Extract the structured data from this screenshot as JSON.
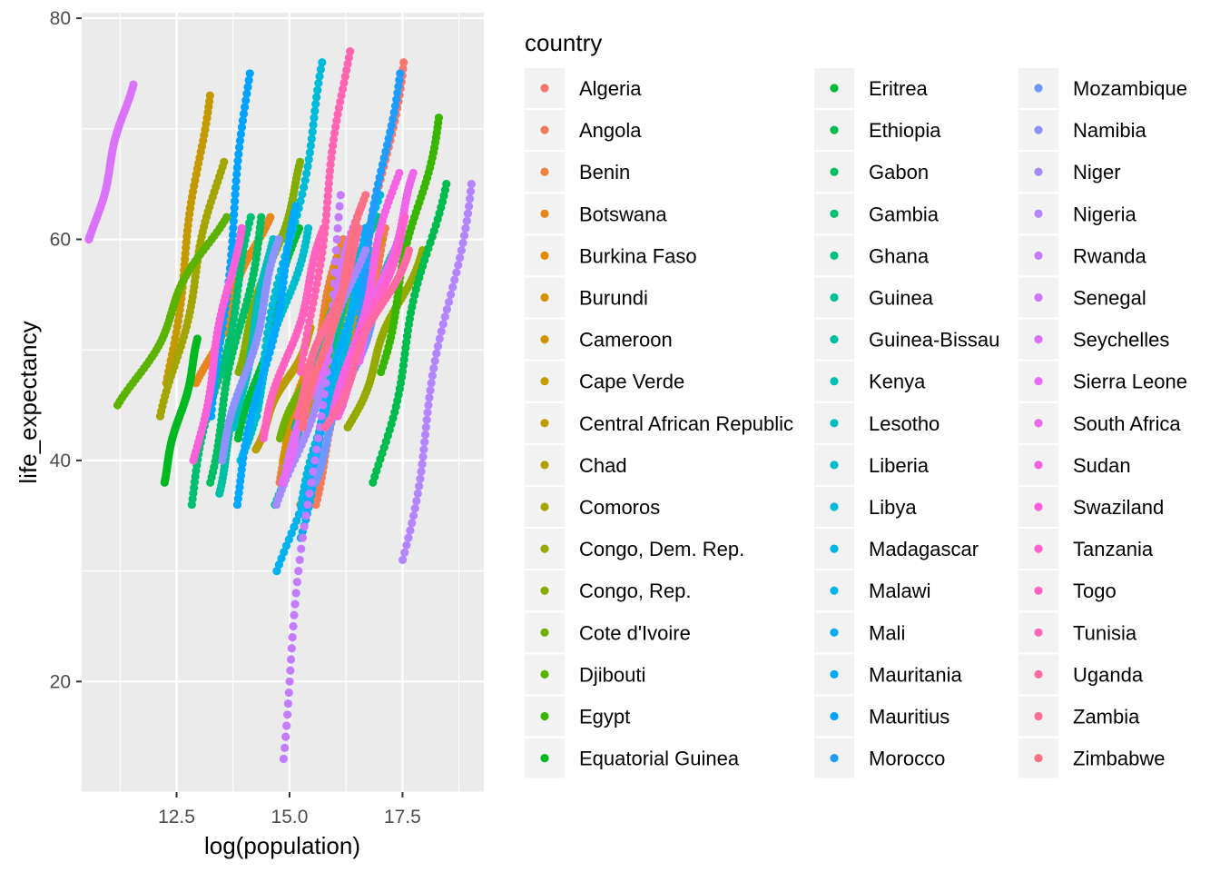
{
  "chart_data": {
    "type": "scatter",
    "title": "",
    "xlabel": "log(population)",
    "ylabel": "life_expectancy",
    "xlim": [
      10.4,
      19.3
    ],
    "ylim": [
      10,
      80.5
    ],
    "x_ticks": [
      "12.5",
      "15.0",
      "17.5"
    ],
    "x_tick_values": [
      12.5,
      15.0,
      17.5
    ],
    "y_ticks": [
      "20",
      "40",
      "60",
      "80"
    ],
    "y_tick_values": [
      20,
      40,
      60,
      80
    ],
    "grid": true,
    "panel_background": "#ebebeb",
    "legend": {
      "title": "country",
      "placement": "right",
      "columns": 3
    },
    "series": [
      {
        "name": "Algeria",
        "color": "#F8766D",
        "x_range": [
          16.2,
          17.5
        ],
        "y_range": [
          46,
          76
        ]
      },
      {
        "name": "Angola",
        "color": "#F37B59",
        "x_range": [
          15.5,
          17.2
        ],
        "y_range": [
          36,
          61
        ]
      },
      {
        "name": "Benin",
        "color": "#ED8141",
        "x_range": [
          14.8,
          16.2
        ],
        "y_range": [
          38,
          60
        ]
      },
      {
        "name": "Botswana",
        "color": "#E7861B",
        "x_range": [
          13.0,
          14.5
        ],
        "y_range": [
          47,
          62
        ]
      },
      {
        "name": "Burkina Faso",
        "color": "#E08B00",
        "x_range": [
          15.2,
          16.8
        ],
        "y_range": [
          36,
          58
        ]
      },
      {
        "name": "Burundi",
        "color": "#D89000",
        "x_range": [
          14.8,
          16.2
        ],
        "y_range": [
          40,
          59
        ]
      },
      {
        "name": "Cameroon",
        "color": "#CF9400",
        "x_range": [
          15.5,
          17.0
        ],
        "y_range": [
          44,
          60
        ]
      },
      {
        "name": "Cape Verde",
        "color": "#C59900",
        "x_range": [
          12.3,
          13.2
        ],
        "y_range": [
          47,
          73
        ]
      },
      {
        "name": "Central African Republic",
        "color": "#BB9D00",
        "x_range": [
          14.2,
          15.5
        ],
        "y_range": [
          41,
          52
        ]
      },
      {
        "name": "Chad",
        "color": "#AFA100",
        "x_range": [
          14.8,
          16.5
        ],
        "y_range": [
          38,
          56
        ]
      },
      {
        "name": "Comoros",
        "color": "#A3A500",
        "x_range": [
          12.2,
          13.5
        ],
        "y_range": [
          44,
          67
        ]
      },
      {
        "name": "Congo, Dem. Rep.",
        "color": "#95A900",
        "x_range": [
          16.3,
          17.9
        ],
        "y_range": [
          43,
          59
        ]
      },
      {
        "name": "Congo, Rep.",
        "color": "#85AD00",
        "x_range": [
          13.8,
          15.3
        ],
        "y_range": [
          48,
          67
        ]
      },
      {
        "name": "Cote d'Ivoire",
        "color": "#72B000",
        "x_range": [
          14.8,
          16.8
        ],
        "y_range": [
          42,
          59
        ]
      },
      {
        "name": "Djibouti",
        "color": "#5BB300",
        "x_range": [
          11.3,
          13.5
        ],
        "y_range": [
          45,
          62
        ]
      },
      {
        "name": "Egypt",
        "color": "#39B600",
        "x_range": [
          17.0,
          18.3
        ],
        "y_range": [
          48,
          71
        ]
      },
      {
        "name": "Equatorial Guinea",
        "color": "#00B81F",
        "x_range": [
          12.2,
          13.0
        ],
        "y_range": [
          38,
          51
        ]
      },
      {
        "name": "Eritrea",
        "color": "#00BA38",
        "x_range": [
          13.9,
          15.2
        ],
        "y_range": [
          42,
          61
        ]
      },
      {
        "name": "Ethiopia",
        "color": "#00BC4E",
        "x_range": [
          16.9,
          18.4
        ],
        "y_range": [
          38,
          65
        ]
      },
      {
        "name": "Gabon",
        "color": "#00BE61",
        "x_range": [
          13.2,
          14.4
        ],
        "y_range": [
          38,
          62
        ]
      },
      {
        "name": "Gambia",
        "color": "#00BF73",
        "x_range": [
          12.8,
          14.2
        ],
        "y_range": [
          36,
          62
        ]
      },
      {
        "name": "Ghana",
        "color": "#00C084",
        "x_range": [
          15.2,
          16.9
        ],
        "y_range": [
          43,
          62
        ]
      },
      {
        "name": "Guinea",
        "color": "#00C094",
        "x_range": [
          14.7,
          16.2
        ],
        "y_range": [
          36,
          58
        ]
      },
      {
        "name": "Guinea-Bissau",
        "color": "#00C0A3",
        "x_range": [
          13.4,
          14.4
        ],
        "y_range": [
          37,
          55
        ]
      },
      {
        "name": "Kenya",
        "color": "#00C0B2",
        "x_range": [
          15.8,
          17.5
        ],
        "y_range": [
          44,
          60
        ]
      },
      {
        "name": "Lesotho",
        "color": "#00BEC0",
        "x_range": [
          13.8,
          14.6
        ],
        "y_range": [
          43,
          60
        ]
      },
      {
        "name": "Liberia",
        "color": "#00BDCD",
        "x_range": [
          13.9,
          15.4
        ],
        "y_range": [
          40,
          61
        ]
      },
      {
        "name": "Libya",
        "color": "#00BAD9",
        "x_range": [
          14.2,
          15.8
        ],
        "y_range": [
          44,
          76
        ]
      },
      {
        "name": "Madagascar",
        "color": "#00B7E4",
        "x_range": [
          15.3,
          17.0
        ],
        "y_range": [
          36,
          64
        ]
      },
      {
        "name": "Malawi",
        "color": "#00B3EE",
        "x_range": [
          14.8,
          16.8
        ],
        "y_range": [
          30,
          59
        ]
      },
      {
        "name": "Mali",
        "color": "#00AEF7",
        "x_range": [
          15.2,
          16.7
        ],
        "y_range": [
          33,
          61
        ]
      },
      {
        "name": "Mauritania",
        "color": "#00A9FF",
        "x_range": [
          13.8,
          15.2
        ],
        "y_range": [
          36,
          63
        ]
      },
      {
        "name": "Mauritius",
        "color": "#00A3FF",
        "x_range": [
          13.3,
          14.1
        ],
        "y_range": [
          44,
          75
        ]
      },
      {
        "name": "Morocco",
        "color": "#1F9DFF",
        "x_range": [
          16.2,
          17.4
        ],
        "y_range": [
          45,
          75
        ]
      },
      {
        "name": "Mozambique",
        "color": "#6E97FF",
        "x_range": [
          15.5,
          17.0
        ],
        "y_range": [
          38,
          55
        ]
      },
      {
        "name": "Namibia",
        "color": "#8E92FF",
        "x_range": [
          13.5,
          14.8
        ],
        "y_range": [
          40,
          60
        ]
      },
      {
        "name": "Niger",
        "color": "#A58AFF",
        "x_range": [
          14.8,
          16.6
        ],
        "y_range": [
          36,
          59
        ]
      },
      {
        "name": "Nigeria",
        "color": "#B584FF",
        "x_range": [
          17.5,
          19.0
        ],
        "y_range": [
          31,
          65
        ]
      },
      {
        "name": "Rwanda",
        "color": "#C37CFF",
        "x_range": [
          14.8,
          16.2
        ],
        "y_range": [
          13,
          64
        ]
      },
      {
        "name": "Senegal",
        "color": "#CF78FF",
        "x_range": [
          14.9,
          16.6
        ],
        "y_range": [
          38,
          63
        ]
      },
      {
        "name": "Seychelles",
        "color": "#DB72FB",
        "x_range": [
          10.6,
          11.5
        ],
        "y_range": [
          60,
          74
        ]
      },
      {
        "name": "Sierra Leone",
        "color": "#E56CF4",
        "x_range": [
          14.8,
          15.9
        ],
        "y_range": [
          38,
          51
        ]
      },
      {
        "name": "South Africa",
        "color": "#EE66EB",
        "x_range": [
          16.5,
          17.8
        ],
        "y_range": [
          49,
          66
        ]
      },
      {
        "name": "Sudan",
        "color": "#F563E3",
        "x_range": [
          16.0,
          17.4
        ],
        "y_range": [
          44,
          66
        ]
      },
      {
        "name": "Swaziland",
        "color": "#FA61D8",
        "x_range": [
          12.9,
          13.9
        ],
        "y_range": [
          40,
          61
        ]
      },
      {
        "name": "Tanzania",
        "color": "#FD61CD",
        "x_range": [
          16.0,
          17.6
        ],
        "y_range": [
          44,
          62
        ]
      },
      {
        "name": "Togo",
        "color": "#FF62BF",
        "x_range": [
          14.4,
          15.8
        ],
        "y_range": [
          42,
          61
        ]
      },
      {
        "name": "Tunisia",
        "color": "#FF65B2",
        "x_range": [
          15.3,
          16.3
        ],
        "y_range": [
          48,
          77
        ]
      },
      {
        "name": "Uganda",
        "color": "#FF69A4",
        "x_range": [
          15.8,
          17.6
        ],
        "y_range": [
          43,
          59
        ]
      },
      {
        "name": "Zambia",
        "color": "#FF6C94",
        "x_range": [
          15.1,
          16.6
        ],
        "y_range": [
          44,
          61
        ]
      },
      {
        "name": "Zimbabwe",
        "color": "#FC7083",
        "x_range": [
          15.3,
          16.7
        ],
        "y_range": [
          43,
          64
        ]
      }
    ]
  }
}
